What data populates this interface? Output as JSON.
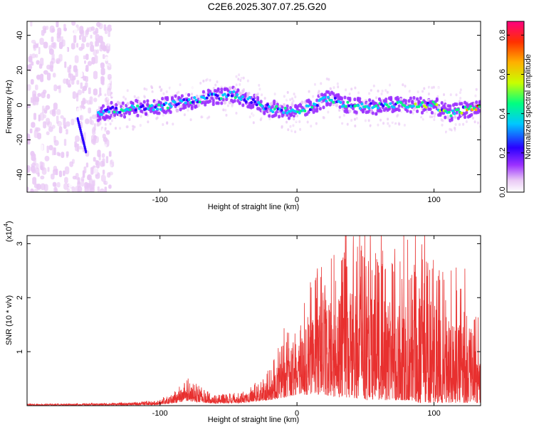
{
  "title": "C2E6.2025.307.07.25.G20",
  "chart_data": [
    {
      "type": "heatmap",
      "name": "spectrogram",
      "xlabel": "Height of straight line (km)",
      "ylabel": "Frequency (Hz)",
      "xlim": [
        -197,
        134
      ],
      "ylim": [
        -50,
        48
      ],
      "xticks": [
        -100,
        0,
        100
      ],
      "xtick_labels": [
        "-100",
        "0",
        "100"
      ],
      "yticks": [
        40,
        20,
        0,
        -20,
        -40
      ],
      "ytick_labels": [
        "40",
        "20",
        "0",
        "-20",
        "-40"
      ],
      "colorbar": {
        "label": "Normalized spectral amplitude",
        "range": [
          0.0,
          0.87
        ],
        "ticks": [
          0.0,
          0.2,
          0.4,
          0.6,
          0.8
        ],
        "tick_labels": [
          "0.0",
          "0.2",
          "0.4",
          "0.6",
          "0.8"
        ],
        "colors": [
          "#ffffff",
          "#e9c8f5",
          "#9b30ff",
          "#2a00ff",
          "#00c8ff",
          "#00ff80",
          "#c8ff00",
          "#ffb000",
          "#ff3000",
          "#ff0080"
        ]
      },
      "ridge": {
        "x": [
          -145,
          -135,
          -120,
          -100,
          -80,
          -60,
          -45,
          -35,
          -20,
          0,
          10,
          22,
          35,
          50,
          70,
          85,
          100,
          110,
          120,
          134
        ],
        "freq": [
          -5,
          -3,
          -2,
          -1,
          2,
          5,
          6,
          3,
          -2,
          -4,
          -1,
          4,
          0,
          -1,
          0,
          0,
          0,
          -5,
          -3,
          -1
        ]
      }
    },
    {
      "type": "line",
      "name": "snr",
      "xlabel": "Height of straight line (km)",
      "ylabel": "SNR (10 * v/v)",
      "scale_label": "(x10",
      "scale_exp": "4",
      "xlim": [
        -197,
        134
      ],
      "ylim": [
        0,
        3.15
      ],
      "xticks": [
        -100,
        0,
        100
      ],
      "xtick_labels": [
        "-100",
        "0",
        "100"
      ],
      "yticks": [
        1,
        2,
        3
      ],
      "ytick_labels": [
        "1",
        "2",
        "3"
      ],
      "color": "#e8302f",
      "envelope": {
        "x": [
          -197,
          -150,
          -120,
          -100,
          -90,
          -80,
          -60,
          -40,
          -30,
          -20,
          -10,
          0,
          10,
          20,
          30,
          40,
          50,
          60,
          70,
          80,
          90,
          100,
          110,
          120,
          134
        ],
        "upper": [
          0.03,
          0.04,
          0.06,
          0.1,
          0.25,
          0.5,
          0.2,
          0.25,
          0.4,
          0.7,
          1.3,
          1.5,
          2.3,
          2.8,
          2.9,
          3.1,
          2.9,
          2.8,
          2.7,
          2.6,
          2.8,
          2.7,
          2.5,
          2.2,
          1.6
        ],
        "lower": [
          0.0,
          0.0,
          0.0,
          0.02,
          0.05,
          0.08,
          0.04,
          0.05,
          0.08,
          0.1,
          0.15,
          0.2,
          0.2,
          0.2,
          0.15,
          0.15,
          0.1,
          0.1,
          0.1,
          0.1,
          0.05,
          0.05,
          0.05,
          0.05,
          0.05
        ]
      }
    }
  ]
}
